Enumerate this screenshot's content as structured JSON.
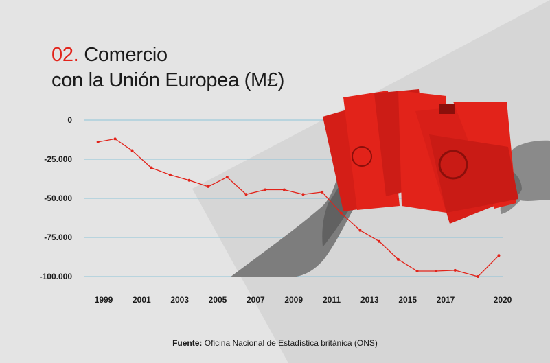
{
  "title": {
    "number": "02.",
    "line1": "Comercio",
    "line2": "con la Unión Europea (M£)"
  },
  "chart_data": {
    "type": "line",
    "title": "Comercio con la Unión Europea (M£)",
    "x_ticks": [
      "1999",
      "2001",
      "2003",
      "2005",
      "2007",
      "2009",
      "2011",
      "2013",
      "2015",
      "2017",
      "2020"
    ],
    "y_ticks": [
      "0",
      "-25.000",
      "-50.000",
      "-75.000",
      "-100.000"
    ],
    "ylim": [
      -100000,
      0
    ],
    "xlim": [
      1999,
      2020
    ],
    "grid": true,
    "series": [
      {
        "color": "#e2231a",
        "points": [
          {
            "x": 1998.7,
            "y": -14000
          },
          {
            "x": 1999.6,
            "y": -12000
          },
          {
            "x": 2000.5,
            "y": -19500
          },
          {
            "x": 2001.5,
            "y": -30500
          },
          {
            "x": 2002.5,
            "y": -35000
          },
          {
            "x": 2003.5,
            "y": -38500
          },
          {
            "x": 2004.5,
            "y": -42500
          },
          {
            "x": 2005.5,
            "y": -36500
          },
          {
            "x": 2006.5,
            "y": -47500
          },
          {
            "x": 2007.5,
            "y": -44500
          },
          {
            "x": 2008.5,
            "y": -44500
          },
          {
            "x": 2009.5,
            "y": -47500
          },
          {
            "x": 2010.5,
            "y": -46000
          },
          {
            "x": 2011.5,
            "y": -59500
          },
          {
            "x": 2012.5,
            "y": -70500
          },
          {
            "x": 2013.5,
            "y": -77500
          },
          {
            "x": 2014.5,
            "y": -89000
          },
          {
            "x": 2015.5,
            "y": -96500
          },
          {
            "x": 2016.5,
            "y": -96500
          },
          {
            "x": 2017.5,
            "y": -96000
          },
          {
            "x": 2018.7,
            "y": -100000
          },
          {
            "x": 2019.8,
            "y": -86500
          }
        ]
      }
    ]
  },
  "source": {
    "label": "Fuente:",
    "text": "Oficina Nacional de Estadística británica (ONS)"
  },
  "colors": {
    "accent": "#e2231a",
    "grid": "#8cc3d8",
    "background": "#e4e4e4"
  }
}
